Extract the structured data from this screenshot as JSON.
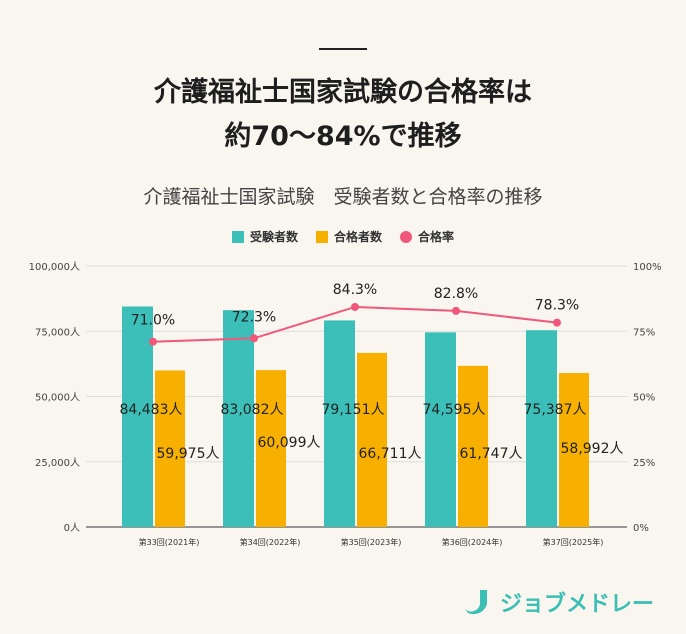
{
  "headline": {
    "line1": "介護福祉士国家試験の合格率は",
    "line2": "約70～84%で推移"
  },
  "chart_data": {
    "type": "bar+line",
    "title": "介護福祉士国家試験　受験者数と合格率の推移",
    "categories": [
      "第33回(2021年)",
      "第34回(2022年)",
      "第35回(2023年)",
      "第36回(2024年)",
      "第37回(2025年)"
    ],
    "series": [
      {
        "name": "受験者数",
        "type": "bar",
        "axis": "left",
        "color": "#3bbfb8",
        "values": [
          84483,
          83082,
          79151,
          74595,
          75387
        ],
        "labels": [
          "84,483人",
          "83,082人",
          "79,151人",
          "74,595人",
          "75,387人"
        ]
      },
      {
        "name": "合格者数",
        "type": "bar",
        "axis": "left",
        "color": "#f8b000",
        "values": [
          59975,
          60099,
          66711,
          61747,
          58992
        ],
        "labels": [
          "59,975人",
          "60,099人",
          "66,711人",
          "61,747人",
          "58,992人"
        ]
      },
      {
        "name": "合格率",
        "type": "line",
        "axis": "right",
        "color": "#f0577a",
        "values": [
          71.0,
          72.3,
          84.3,
          82.8,
          78.3
        ],
        "labels": [
          "71.0%",
          "72.3%",
          "84.3%",
          "82.8%",
          "78.3%"
        ]
      }
    ],
    "y_left": {
      "range": [
        0,
        100000
      ],
      "ticks": [
        "0人",
        "25,000人",
        "50,000人",
        "75,000人",
        "100,000人"
      ]
    },
    "y_right": {
      "range": [
        0,
        100
      ],
      "ticks": [
        "0%",
        "25%",
        "50%",
        "75%",
        "100%"
      ]
    },
    "grid": true,
    "legend": "top-center"
  },
  "logo": {
    "text": "ジョブメドレー",
    "color": "#3bbfb4"
  }
}
